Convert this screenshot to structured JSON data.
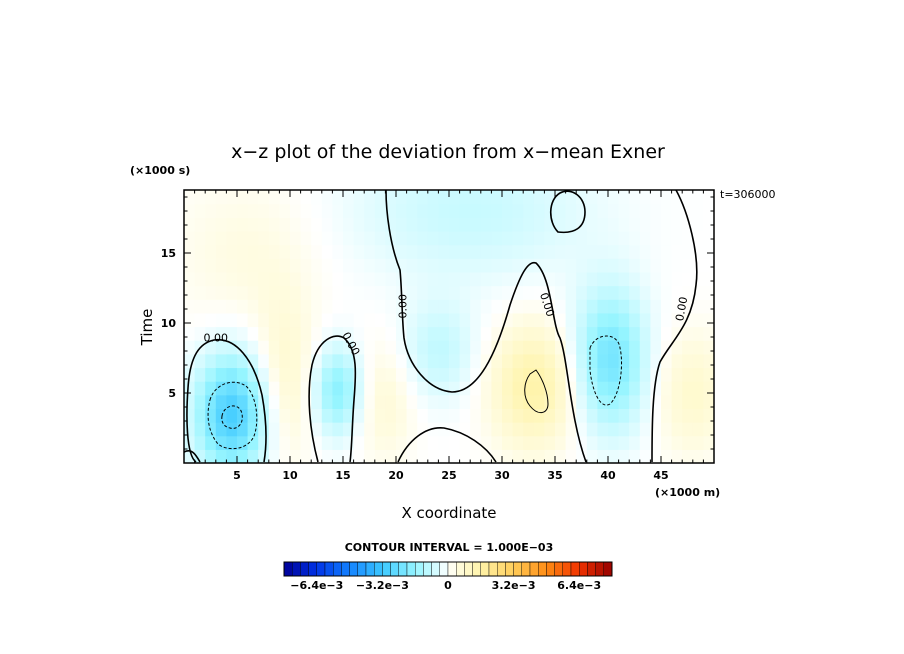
{
  "chart_data": {
    "type": "heatmap",
    "subtype": "filled-contour",
    "title": "x−z plot of the deviation from x−mean Exner",
    "xlabel": "X coordinate",
    "ylabel": "Time",
    "x_unit": "(×1000 m)",
    "y_unit": "(×1000 s)",
    "time_label": "t=306000",
    "xlim": [
      0,
      50
    ],
    "ylim": [
      0,
      19.5
    ],
    "xticks": [
      5,
      10,
      15,
      20,
      25,
      30,
      35,
      40,
      45
    ],
    "yticks": [
      5,
      10,
      15
    ],
    "xtick_labels": [
      "5",
      "10",
      "15",
      "20",
      "25",
      "30",
      "35",
      "40",
      "45"
    ],
    "ytick_labels": [
      "5",
      "10",
      "15"
    ],
    "contour_interval_label": "CONTOUR INTERVAL = 1.000E−03",
    "contour_labels": [
      {
        "text": "0.00",
        "x": 3.0,
        "y": 8.9,
        "angle": 0
      },
      {
        "text": "0.00",
        "x": 15.7,
        "y": 8.5,
        "angle": 62
      },
      {
        "text": "0.00",
        "x": 20.7,
        "y": 11.2,
        "angle": -90
      },
      {
        "text": "0.00",
        "x": 34.2,
        "y": 11.3,
        "angle": 72
      },
      {
        "text": "0.00",
        "x": 47.0,
        "y": 11.0,
        "angle": -80
      }
    ],
    "colorbar": {
      "range": [
        -0.008,
        0.008
      ],
      "tick_labels": [
        "−6.4e−3",
        "−3.2e−3",
        "0",
        "3.2e−3",
        "6.4e−3"
      ],
      "tick_values": [
        -0.0064,
        -0.0032,
        0,
        0.0032,
        0.0064
      ]
    },
    "field_features": [
      {
        "x": 4.5,
        "y": 3.5,
        "sx": 2.4,
        "sy": 3.0,
        "amp": -0.003
      },
      {
        "x": 14.5,
        "y": 5.2,
        "sx": 1.6,
        "sy": 2.2,
        "amp": -0.0018
      },
      {
        "x": 24.0,
        "y": 8.0,
        "sx": 2.5,
        "sy": 2.5,
        "amp": -0.0009
      },
      {
        "x": 40.2,
        "y": 7.4,
        "sx": 2.4,
        "sy": 3.5,
        "amp": -0.0022
      },
      {
        "x": 27.0,
        "y": 18.0,
        "sx": 8.0,
        "sy": 3.5,
        "amp": -0.0008
      },
      {
        "x": 33.0,
        "y": 5.5,
        "sx": 2.8,
        "sy": 3.0,
        "amp": 0.0016
      },
      {
        "x": 9.5,
        "y": 6.0,
        "sx": 2.0,
        "sy": 4.0,
        "amp": 0.0008
      },
      {
        "x": 19.0,
        "y": 4.5,
        "sx": 2.0,
        "sy": 3.0,
        "amp": 0.0006
      },
      {
        "x": 48.0,
        "y": 5.0,
        "sx": 2.5,
        "sy": 3.0,
        "amp": 0.0008
      },
      {
        "x": 6.0,
        "y": 15.0,
        "sx": 5.0,
        "sy": 4.0,
        "amp": 0.0004
      }
    ]
  }
}
